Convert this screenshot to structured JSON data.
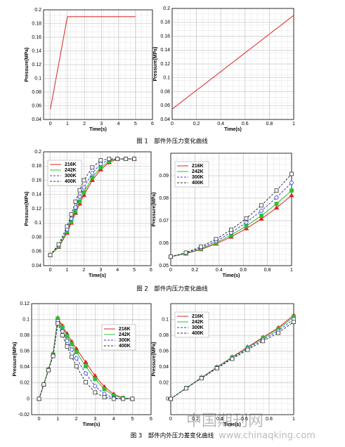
{
  "chart_data": [
    {
      "type": "line",
      "xlabel": "Time(s)",
      "ylabel": "Pressure(MPa)",
      "x": [
        0,
        1,
        5
      ],
      "values": [
        0.055,
        0.19,
        0.19
      ],
      "color": "#d22",
      "xlim": [
        -0.4,
        6
      ],
      "xticks": [
        0,
        1,
        2,
        3,
        4,
        5,
        6
      ],
      "ylim": [
        0.04,
        0.2
      ],
      "yticks": [
        0.04,
        0.06,
        0.08,
        0.1,
        0.12,
        0.14,
        0.16,
        0.18,
        0.2
      ],
      "grid": true
    },
    {
      "type": "line",
      "xlabel": "Time(s)",
      "ylabel": "Pressure(MPa)",
      "x": [
        0,
        1
      ],
      "values": [
        0.055,
        0.19
      ],
      "color": "#d22",
      "xlim": [
        0,
        1
      ],
      "xticks": [
        0,
        0.2,
        0.4,
        0.6,
        0.8,
        1
      ],
      "ylim": [
        0.04,
        0.2
      ],
      "yticks": [
        0.04,
        0.06,
        0.08,
        0.1,
        0.12,
        0.14,
        0.16,
        0.18,
        0.2
      ],
      "grid": true
    },
    {
      "type": "line",
      "xlabel": "Time(s)",
      "ylabel": "Pressure(MPa)",
      "x": [
        0,
        0.5,
        1,
        1.25,
        1.5,
        1.75,
        2,
        2.5,
        3,
        3.5,
        4,
        4.5,
        5
      ],
      "xlim": [
        -0.4,
        6
      ],
      "xticks": [
        0,
        1,
        2,
        3,
        4,
        5,
        6
      ],
      "ylim": [
        0.04,
        0.2
      ],
      "yticks": [
        0.04,
        0.06,
        0.08,
        0.1,
        0.12,
        0.14,
        0.16,
        0.18,
        0.2
      ],
      "grid": true,
      "legend": "upper left",
      "series": [
        {
          "name": "216K",
          "color": "#e02020",
          "marker": "triangle",
          "dashed": false,
          "values": [
            0.055,
            0.066,
            0.086,
            0.1,
            0.114,
            0.127,
            0.139,
            0.16,
            0.175,
            0.185,
            0.19,
            0.19,
            0.19
          ]
        },
        {
          "name": "242K",
          "color": "#30c030",
          "marker": "square",
          "dashed": false,
          "values": [
            0.055,
            0.067,
            0.088,
            0.102,
            0.117,
            0.13,
            0.143,
            0.164,
            0.178,
            0.187,
            0.19,
            0.19,
            0.19
          ]
        },
        {
          "name": "300K",
          "color": "#3040e0",
          "marker": "circle",
          "dashed": true,
          "values": [
            0.055,
            0.068,
            0.091,
            0.106,
            0.122,
            0.137,
            0.15,
            0.17,
            0.183,
            0.189,
            0.19,
            0.19,
            0.19
          ]
        },
        {
          "name": "400K",
          "color": "#333333",
          "marker": "square",
          "dashed": true,
          "values": [
            0.055,
            0.07,
            0.095,
            0.112,
            0.13,
            0.146,
            0.16,
            0.178,
            0.188,
            0.19,
            0.19,
            0.19,
            0.19
          ]
        }
      ]
    },
    {
      "type": "line",
      "xlabel": "Time(s)",
      "ylabel": "Pressure(MPa)",
      "x": [
        0,
        0.125,
        0.25,
        0.375,
        0.5,
        0.625,
        0.75,
        0.875,
        1
      ],
      "xlim": [
        0,
        1
      ],
      "xticks": [
        0,
        0.2,
        0.4,
        0.6,
        0.8,
        1
      ],
      "ylim": [
        0.05,
        0.1
      ],
      "yticks": [
        0.05,
        0.06,
        0.07,
        0.08,
        0.09
      ],
      "grid": true,
      "legend": "upper left",
      "series": [
        {
          "name": "216K",
          "color": "#e02020",
          "marker": "triangle",
          "dashed": false,
          "values": [
            0.054,
            0.0553,
            0.0572,
            0.0597,
            0.0628,
            0.0665,
            0.0708,
            0.0757,
            0.0812
          ]
        },
        {
          "name": "242K",
          "color": "#30c030",
          "marker": "square",
          "dashed": false,
          "values": [
            0.054,
            0.0554,
            0.0575,
            0.0602,
            0.0636,
            0.0676,
            0.0722,
            0.0775,
            0.0834
          ]
        },
        {
          "name": "300K",
          "color": "#3040e0",
          "marker": "circle",
          "dashed": true,
          "values": [
            0.054,
            0.0556,
            0.0579,
            0.0609,
            0.0647,
            0.0692,
            0.0744,
            0.0803,
            0.0869
          ]
        },
        {
          "name": "400K",
          "color": "#333333",
          "marker": "square",
          "dashed": true,
          "values": [
            0.054,
            0.0558,
            0.0584,
            0.0618,
            0.066,
            0.071,
            0.0768,
            0.0834,
            0.0908
          ]
        }
      ]
    },
    {
      "type": "line",
      "xlabel": "Time(s)",
      "ylabel": "Pressure(MPa)",
      "x": [
        0,
        0.25,
        0.5,
        0.75,
        1,
        1.25,
        1.5,
        1.75,
        2,
        2.5,
        3,
        3.5,
        4,
        4.5,
        5
      ],
      "xlim": [
        -0.4,
        6
      ],
      "xticks": [
        0,
        1,
        2,
        3,
        4,
        5,
        6
      ],
      "ylim": [
        -0.02,
        0.12
      ],
      "yticks": [
        -0.02,
        0,
        0.02,
        0.04,
        0.06,
        0.08,
        0.1,
        0.12
      ],
      "grid": true,
      "legend": "upper right",
      "series": [
        {
          "name": "216K",
          "color": "#e02020",
          "marker": "triangle",
          "dashed": false,
          "values": [
            0,
            0.018,
            0.037,
            0.057,
            0.102,
            0.092,
            0.082,
            0.072,
            0.063,
            0.046,
            0.029,
            0.015,
            0.006,
            0.001,
            0
          ]
        },
        {
          "name": "242K",
          "color": "#30c030",
          "marker": "square",
          "dashed": false,
          "values": [
            0,
            0.018,
            0.037,
            0.056,
            0.101,
            0.09,
            0.079,
            0.069,
            0.059,
            0.041,
            0.025,
            0.012,
            0.004,
            0.001,
            0
          ]
        },
        {
          "name": "300K",
          "color": "#3040e0",
          "marker": "circle",
          "dashed": true,
          "values": [
            0,
            0.018,
            0.036,
            0.055,
            0.098,
            0.085,
            0.073,
            0.062,
            0.051,
            0.032,
            0.016,
            0.006,
            0.001,
            0,
            0
          ]
        },
        {
          "name": "400K",
          "color": "#333333",
          "marker": "square",
          "dashed": true,
          "values": [
            0,
            0.018,
            0.036,
            0.054,
            0.095,
            0.08,
            0.066,
            0.053,
            0.041,
            0.021,
            0.008,
            0.002,
            0,
            0,
            0
          ]
        }
      ]
    },
    {
      "type": "line",
      "xlabel": "Time(s)",
      "ylabel": "Pressure(MPa)",
      "x": [
        0,
        0.125,
        0.25,
        0.375,
        0.5,
        0.625,
        0.75,
        0.875,
        1
      ],
      "xlim": [
        0,
        1
      ],
      "xticks": [
        0,
        0.2,
        0.4,
        0.6,
        0.8,
        1
      ],
      "ylim": [
        -0.02,
        0.12
      ],
      "yticks": [
        0,
        0.02,
        0.04,
        0.06,
        0.08,
        0.1
      ],
      "grid": true,
      "legend": "upper left",
      "series": [
        {
          "name": "216K",
          "color": "#e02020",
          "marker": "triangle",
          "dashed": false,
          "values": [
            0,
            0.0135,
            0.0268,
            0.0399,
            0.0527,
            0.0653,
            0.0776,
            0.0896,
            0.1055
          ]
        },
        {
          "name": "242K",
          "color": "#30c030",
          "marker": "square",
          "dashed": false,
          "values": [
            0,
            0.0135,
            0.0266,
            0.0396,
            0.0522,
            0.0645,
            0.0764,
            0.088,
            0.1035
          ]
        },
        {
          "name": "300K",
          "color": "#3040e0",
          "marker": "circle",
          "dashed": true,
          "values": [
            0,
            0.0134,
            0.0263,
            0.0391,
            0.0514,
            0.0633,
            0.0748,
            0.0858,
            0.1005
          ]
        },
        {
          "name": "400K",
          "color": "#333333",
          "marker": "square",
          "dashed": true,
          "values": [
            0,
            0.0132,
            0.0259,
            0.0384,
            0.0504,
            0.0618,
            0.0728,
            0.0832,
            0.097
          ]
        }
      ]
    }
  ],
  "captions": [
    "图 1　部件外压力变化曲线",
    "图 2　部件内压力变化曲线",
    "图 3　部件内外压力差变化曲线"
  ],
  "watermark": {
    "title": "中国期刊网",
    "url": "www.chinaqking.com"
  }
}
